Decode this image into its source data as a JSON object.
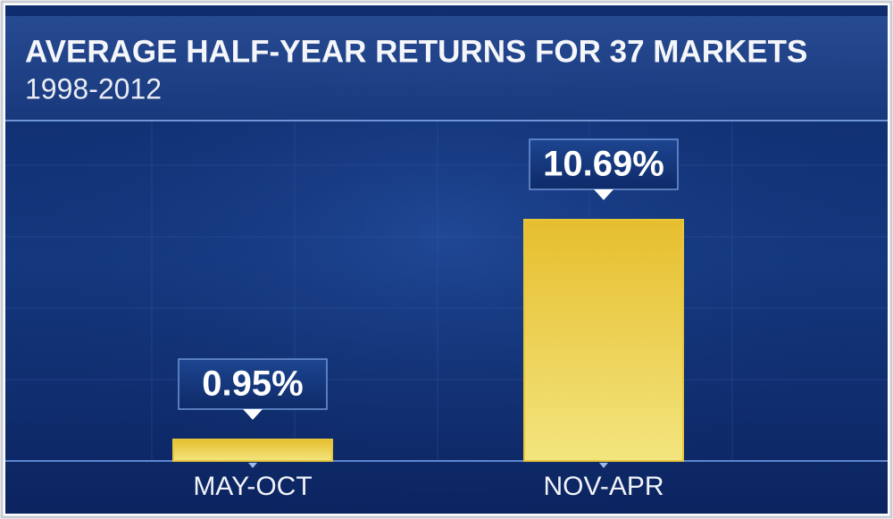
{
  "chart_data": {
    "type": "bar",
    "title": "AVERAGE HALF-YEAR RETURNS FOR 37 MARKETS",
    "subtitle": "1998-2012",
    "categories": [
      "MAY-OCT",
      "NOV-APR"
    ],
    "values": [
      0.95,
      10.69
    ],
    "value_labels": [
      "0.95%",
      "10.69%"
    ],
    "color": "#e8c63a"
  }
}
